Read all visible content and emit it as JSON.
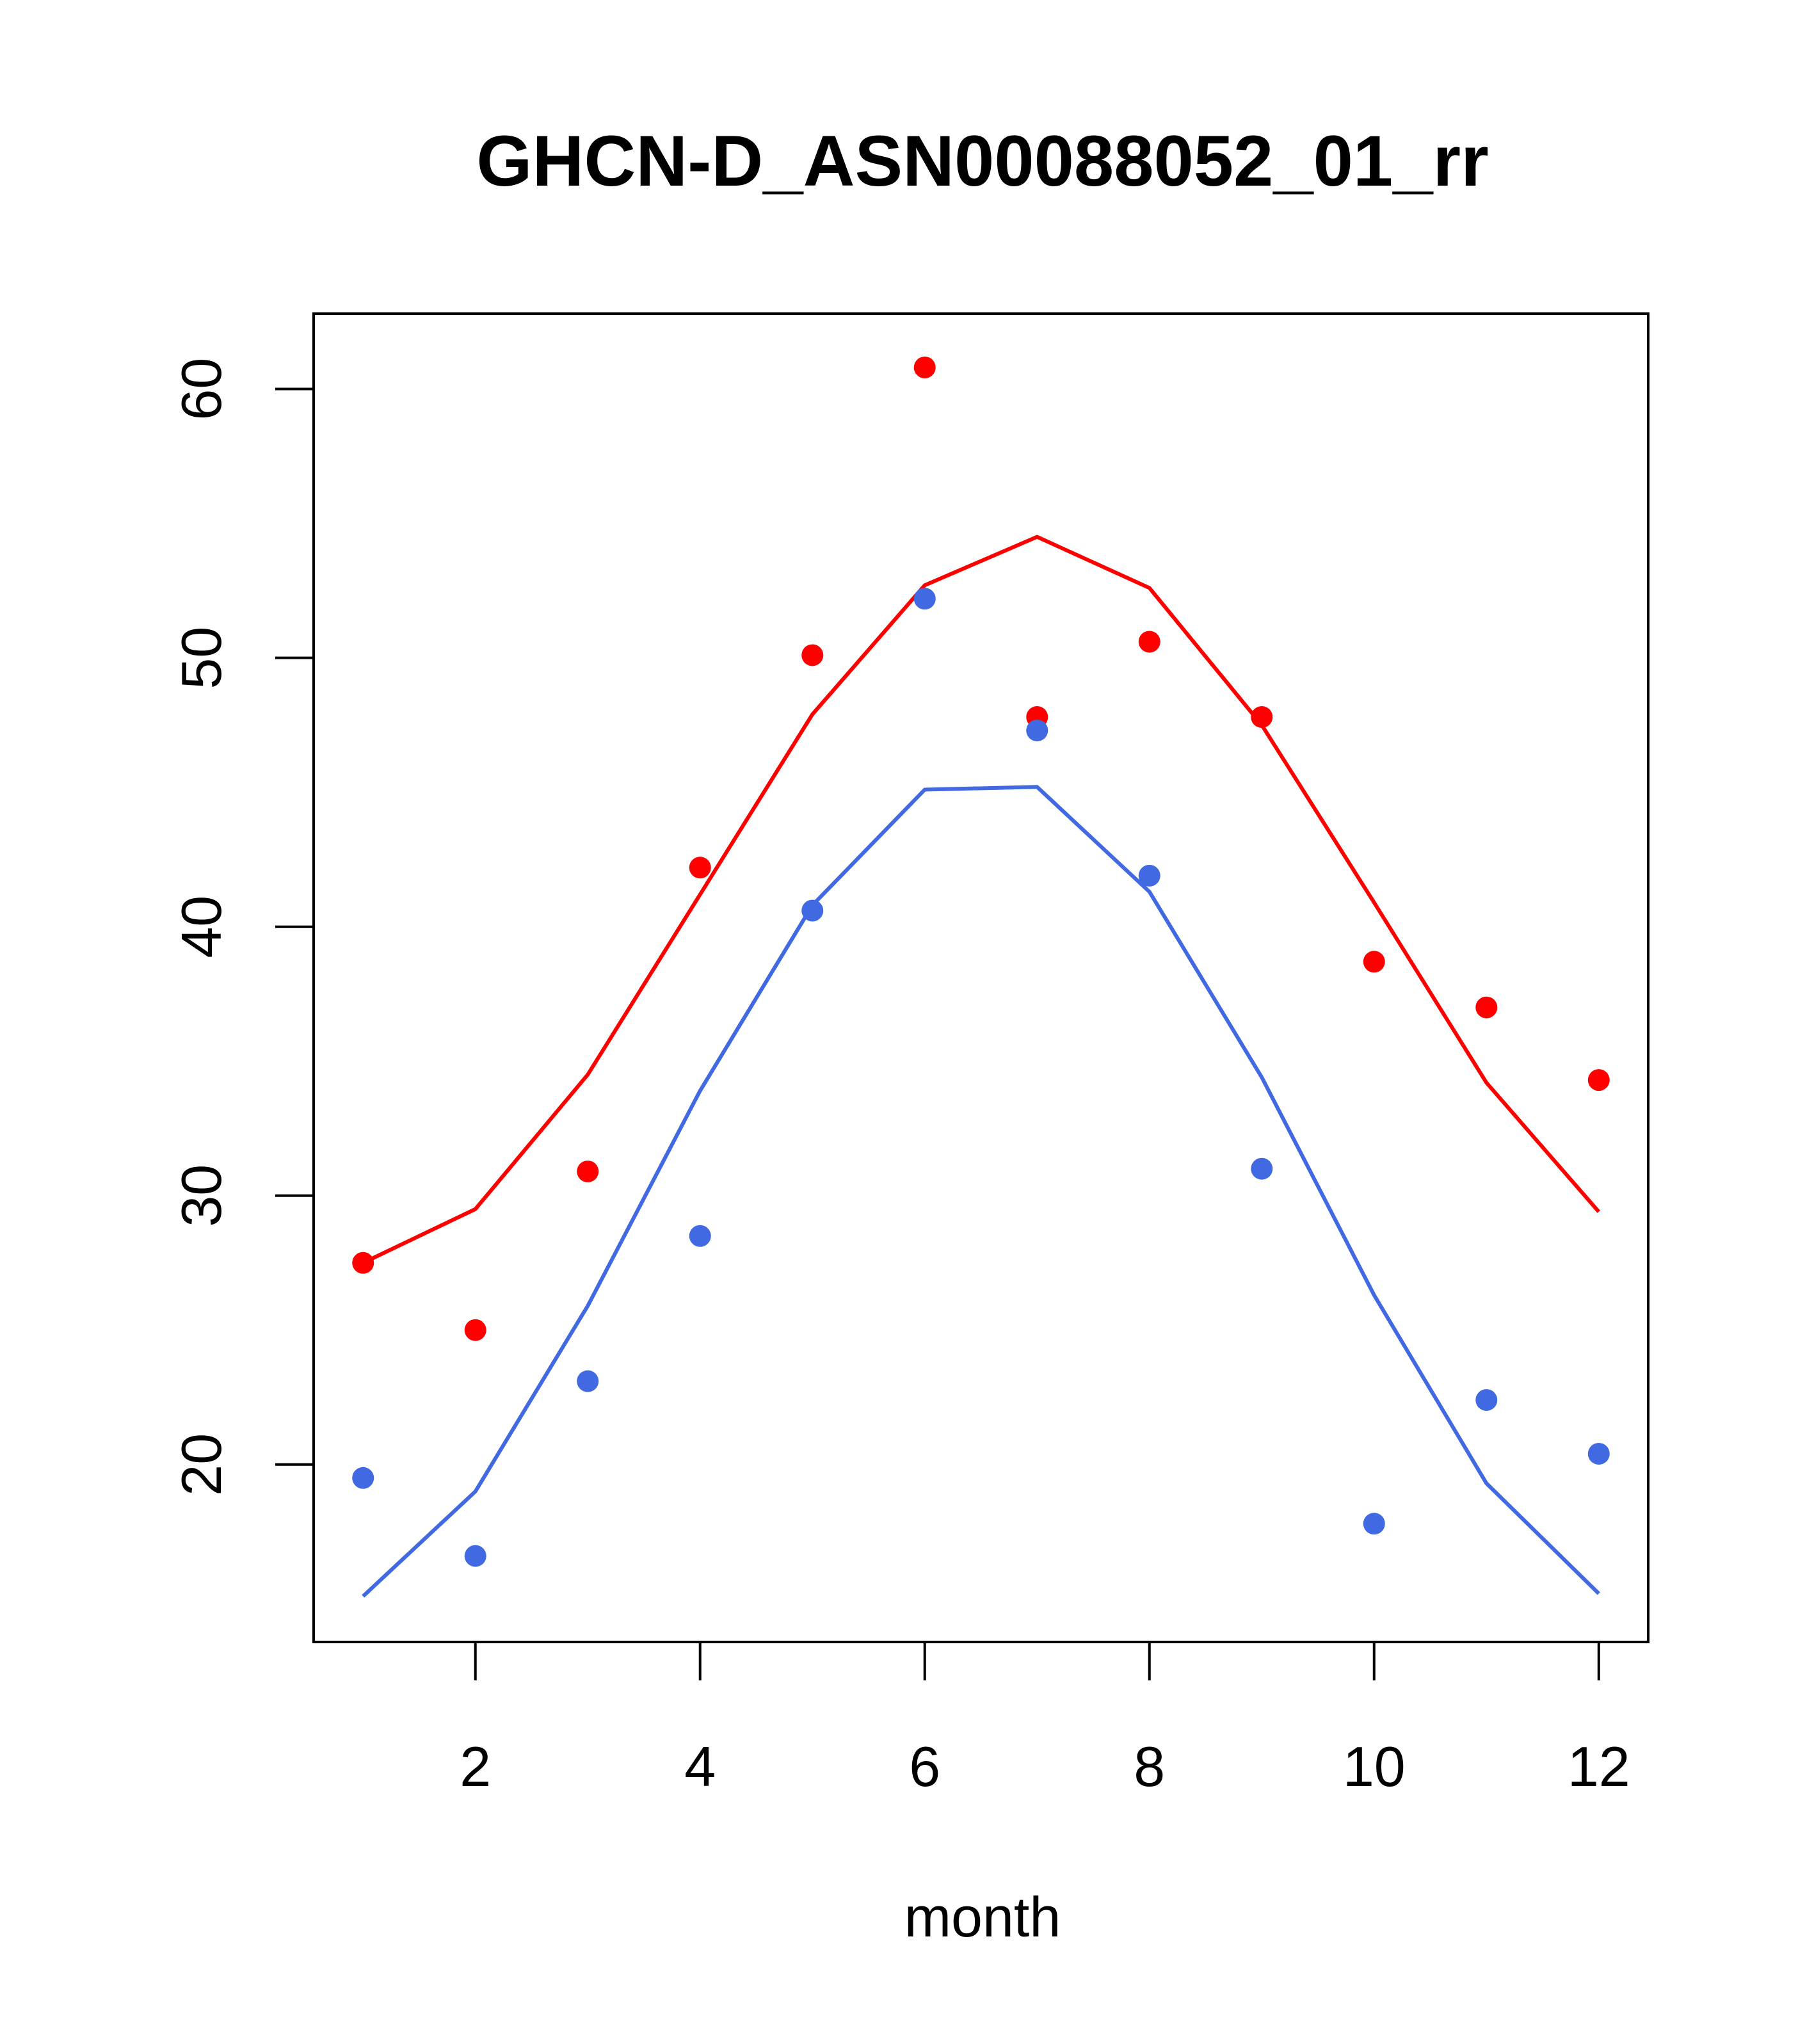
{
  "chart_data": {
    "type": "scatter",
    "title": "GHCN-D_ASN00088052_01_rr",
    "xlabel": "month",
    "ylabel": "",
    "xlim": [
      0.56,
      12.44
    ],
    "ylim": [
      13.4,
      62.8
    ],
    "x_ticks": [
      2,
      4,
      6,
      8,
      10,
      12
    ],
    "y_ticks": [
      20,
      30,
      40,
      50,
      60
    ],
    "x_tick_labels": [
      "2",
      "4",
      "6",
      "8",
      "10",
      "12"
    ],
    "y_tick_labels": [
      "20",
      "30",
      "40",
      "50",
      "60"
    ],
    "grid": false,
    "legend": "none",
    "x": [
      1,
      2,
      3,
      4,
      5,
      6,
      7,
      8,
      9,
      10,
      11,
      12
    ],
    "series": [
      {
        "kind": "points",
        "color": "#ff0000",
        "values": [
          27.5,
          25.0,
          30.9,
          42.2,
          50.1,
          60.8,
          47.8,
          50.6,
          47.8,
          38.7,
          37.0,
          34.3
        ]
      },
      {
        "kind": "line",
        "color": "#ff0000",
        "values": [
          27.5,
          29.5,
          34.5,
          41.2,
          47.9,
          52.7,
          54.5,
          52.6,
          47.5,
          40.9,
          34.2,
          29.4
        ]
      },
      {
        "kind": "points",
        "color": "#4169e1",
        "values": [
          19.5,
          16.6,
          23.1,
          28.5,
          40.6,
          52.2,
          47.3,
          41.9,
          31.0,
          17.8,
          22.4,
          20.4
        ]
      },
      {
        "kind": "line",
        "color": "#4169e1",
        "values": [
          15.1,
          19.0,
          25.9,
          33.9,
          40.8,
          45.1,
          45.2,
          41.3,
          34.4,
          26.3,
          19.3,
          15.2
        ]
      }
    ]
  }
}
